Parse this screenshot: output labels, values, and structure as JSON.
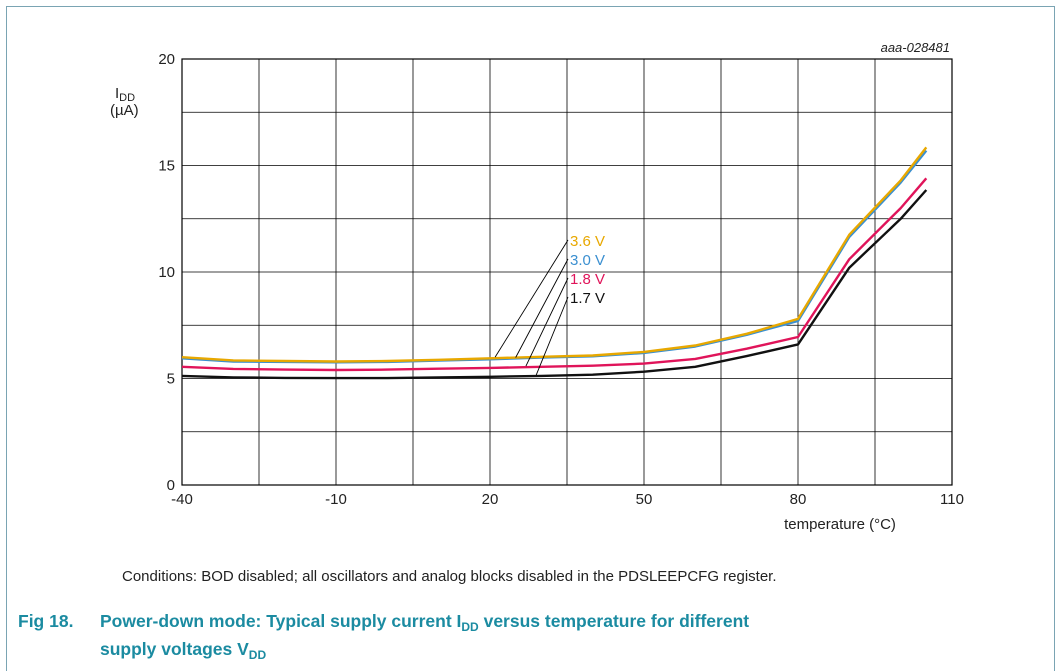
{
  "chart_data": {
    "type": "line",
    "figure_id": "aaa-028481",
    "ylabel_main": "I",
    "ylabel_sub": "DD",
    "ylabel_unit": "(µA)",
    "xlabel": "temperature (°C)",
    "xlim": [
      -40,
      110
    ],
    "ylim": [
      0,
      20
    ],
    "xticks": [
      -40,
      -10,
      20,
      50,
      80,
      110
    ],
    "yticks": [
      0,
      5,
      10,
      15,
      20
    ],
    "grid": true,
    "x": [
      -40,
      -30,
      -20,
      -10,
      0,
      10,
      20,
      30,
      40,
      50,
      60,
      70,
      80,
      90,
      100,
      105
    ],
    "series": [
      {
        "name": "3.6 V",
        "color": "#e8a800",
        "values": [
          6.0,
          5.85,
          5.82,
          5.8,
          5.82,
          5.88,
          5.95,
          6.02,
          6.08,
          6.25,
          6.55,
          7.1,
          7.8,
          11.75,
          14.3,
          15.85
        ]
      },
      {
        "name": "3.0 V",
        "color": "#3a8fd0",
        "values": [
          5.95,
          5.8,
          5.78,
          5.76,
          5.78,
          5.84,
          5.9,
          5.98,
          6.04,
          6.2,
          6.5,
          7.05,
          7.7,
          11.65,
          14.2,
          15.7
        ]
      },
      {
        "name": "1.8 V",
        "color": "#e0145a",
        "values": [
          5.55,
          5.45,
          5.42,
          5.4,
          5.42,
          5.46,
          5.5,
          5.55,
          5.6,
          5.7,
          5.92,
          6.4,
          6.95,
          10.6,
          13.0,
          14.4
        ]
      },
      {
        "name": "1.7 V",
        "color": "#111111",
        "values": [
          5.12,
          5.05,
          5.03,
          5.02,
          5.02,
          5.05,
          5.08,
          5.12,
          5.18,
          5.32,
          5.55,
          6.05,
          6.6,
          10.2,
          12.5,
          13.85
        ]
      }
    ]
  },
  "conditions": "Conditions: BOD disabled; all oscillators and analog blocks disabled in the PDSLEEPCFG register.",
  "caption": {
    "fig_number": "Fig 18.",
    "text1": "Power-down mode: Typical supply current I",
    "sub1": "DD",
    "text2": " versus temperature for different",
    "text3": "supply voltages V",
    "sub2": "DD"
  }
}
